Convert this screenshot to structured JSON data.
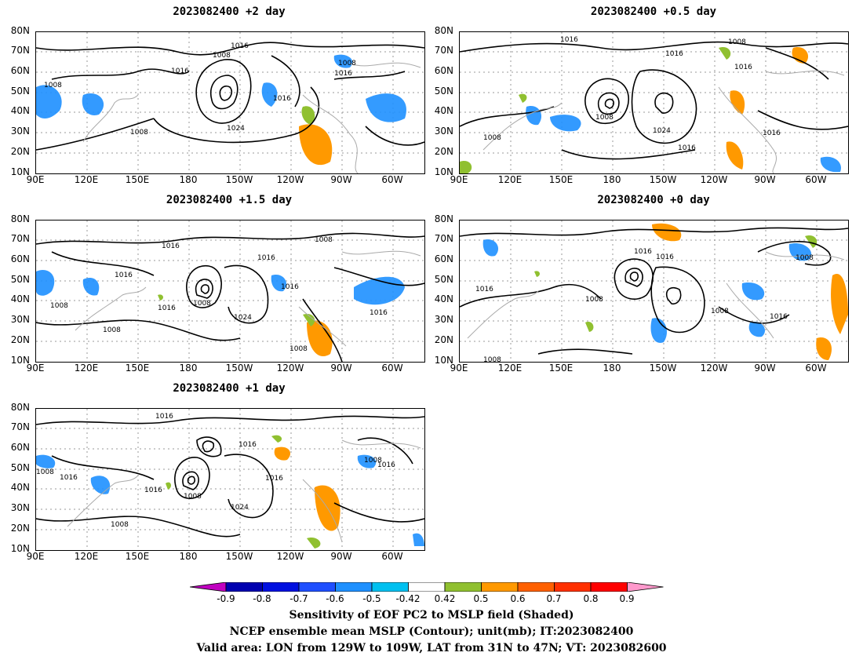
{
  "panels": [
    {
      "title": "2023082400 +2 day"
    },
    {
      "title": "2023082400 +0.5 day"
    },
    {
      "title": "2023082400 +1.5 day"
    },
    {
      "title": "2023082400 +0 day"
    },
    {
      "title": "2023082400 +1 day"
    }
  ],
  "lat_labels": [
    "80N",
    "70N",
    "60N",
    "50N",
    "40N",
    "30N",
    "20N",
    "10N"
  ],
  "lon_labels": [
    "90E",
    "120E",
    "150E",
    "180",
    "150W",
    "120W",
    "90W",
    "60W"
  ],
  "contour_label_values": [
    "1008",
    "1016",
    "1024"
  ],
  "colorbar": {
    "ticks": [
      "-0.9",
      "-0.8",
      "-0.7",
      "-0.6",
      "-0.5",
      "-0.42",
      "0.42",
      "0.5",
      "0.6",
      "0.7",
      "0.8",
      "0.9"
    ],
    "colors": [
      "#c000c0",
      "#0000b0",
      "#0010e0",
      "#1f4fff",
      "#1e90ff",
      "#00c0f0",
      "#ffffff",
      "#90c030",
      "#ff9900",
      "#ff6000",
      "#ff3000",
      "#ff0000",
      "#ff99cc"
    ]
  },
  "caption": {
    "line1": "Sensitivity of EOF PC2 to MSLP field (Shaded)",
    "line2": "NCEP ensemble mean MSLP (Contour); unit(mb); IT:2023082400",
    "line3": "Valid area: LON from 129W to 109W, LAT from 31N to 47N; VT: 2023082600"
  }
}
